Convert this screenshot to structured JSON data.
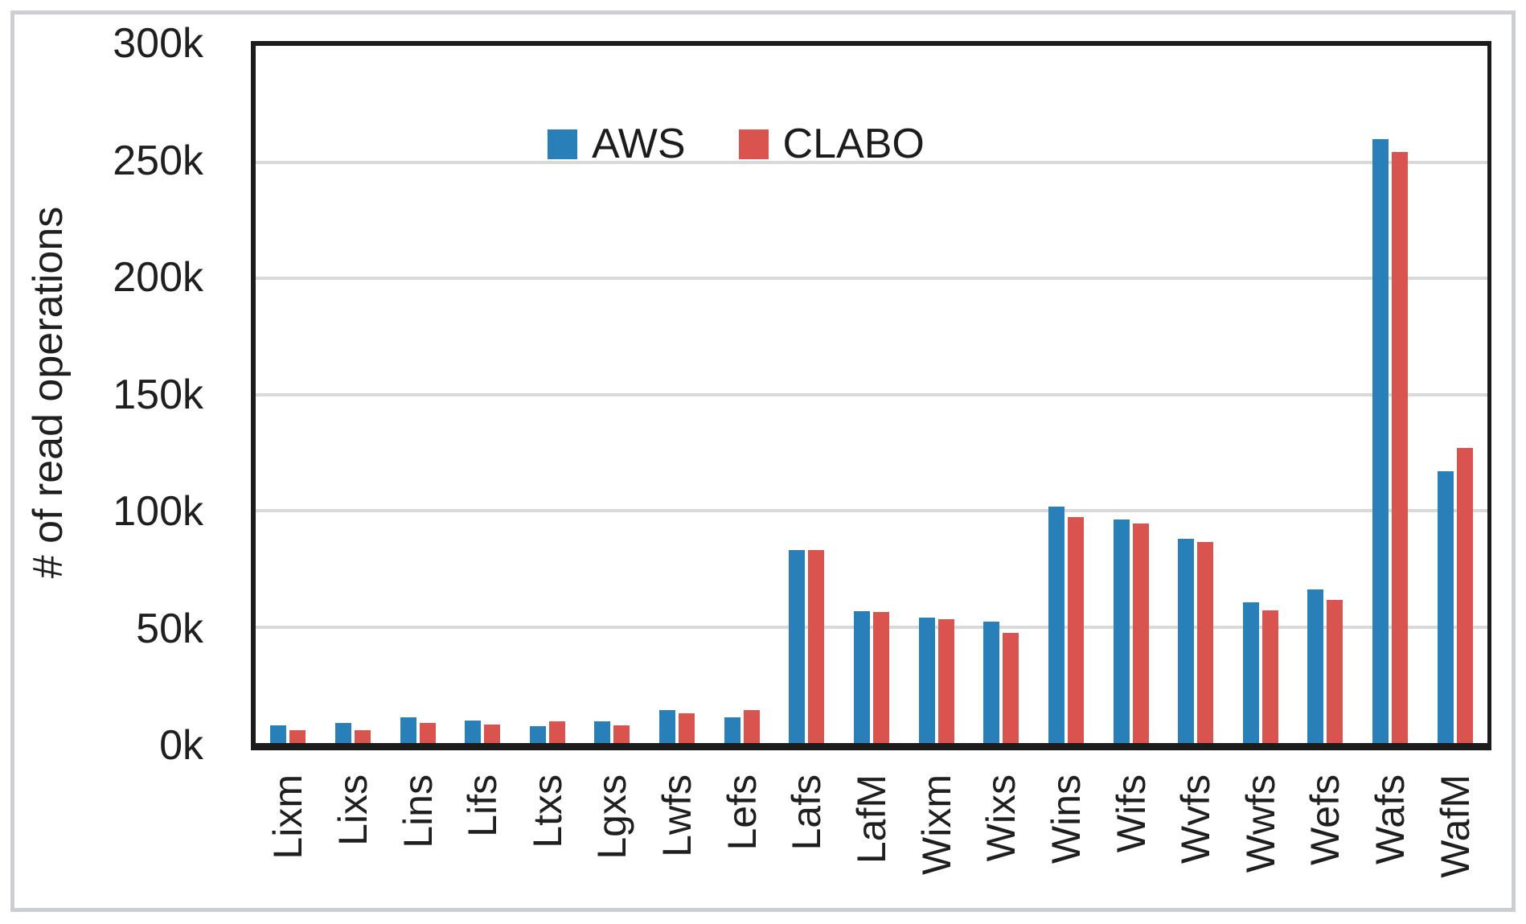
{
  "chart_data": {
    "type": "bar",
    "title": "",
    "ylabel": "# of read operations",
    "xlabel": "",
    "grid": "horizontal-light-gray",
    "legend_position": "top-left-inside",
    "ylim": [
      0,
      300000
    ],
    "yticks": [
      {
        "value": 0,
        "label": "0k"
      },
      {
        "value": 50000,
        "label": "50k"
      },
      {
        "value": 100000,
        "label": "100k"
      },
      {
        "value": 150000,
        "label": "150k"
      },
      {
        "value": 200000,
        "label": "200k"
      },
      {
        "value": 250000,
        "label": "250k"
      },
      {
        "value": 300000,
        "label": "300k"
      }
    ],
    "categories": [
      "Lixm",
      "Lixs",
      "Lins",
      "Lifs",
      "Ltxs",
      "Lgxs",
      "Lwfs",
      "Lefs",
      "Lafs",
      "LafM",
      "Wixm",
      "Wixs",
      "Wins",
      "Wifs",
      "Wvfs",
      "Wwfs",
      "Wefs",
      "Wafs",
      "WafM"
    ],
    "series": [
      {
        "name": "AWS",
        "color": "#2980b9",
        "values": [
          7500,
          8700,
          11200,
          9800,
          7400,
          9500,
          14200,
          11000,
          83100,
          56700,
          53900,
          52400,
          101600,
          96300,
          88000,
          60700,
          66200,
          260000,
          117000
        ]
      },
      {
        "name": "CLABO",
        "color": "#d9534f",
        "values": [
          5500,
          5700,
          8600,
          8100,
          9400,
          7500,
          12800,
          14200,
          82900,
          56400,
          53300,
          47400,
          97200,
          94500,
          86400,
          57000,
          61500,
          254300,
          127000
        ]
      }
    ],
    "colors": {
      "axis": "#1c1c1c",
      "gridline": "#d9d9d9",
      "frame": "#cbcfd3",
      "text": "#1f1f1f"
    }
  }
}
